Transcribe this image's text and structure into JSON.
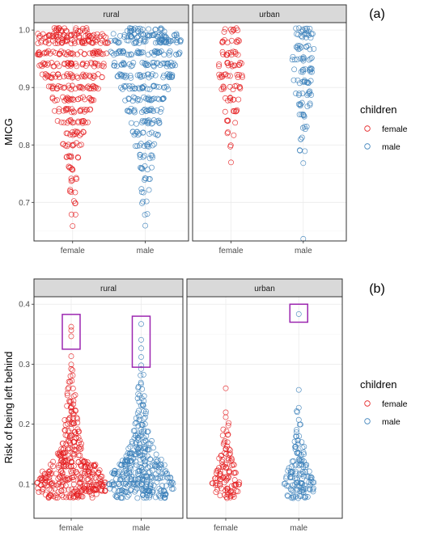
{
  "chart_data": [
    {
      "type": "scatter",
      "subtype": "beeswarm",
      "panel_label": "(a)",
      "ylabel": "MICG",
      "ylim": [
        0.64,
        1.0
      ],
      "yticks": [
        0.7,
        0.8,
        0.9,
        1.0
      ],
      "ytick_labels": [
        "0.7",
        "0.8",
        "0.9",
        "1.0"
      ],
      "facets": [
        "rural",
        "urban"
      ],
      "categories": [
        "female",
        "male"
      ],
      "legend": {
        "title": "children",
        "position": "right",
        "entries": [
          "female",
          "male"
        ]
      },
      "grid": true,
      "series": [
        {
          "name": "female",
          "color": "#E41A1C",
          "facet": "rural",
          "profile": [
            [
              0.66,
              1
            ],
            [
              0.68,
              2
            ],
            [
              0.7,
              3
            ],
            [
              0.72,
              4
            ],
            [
              0.74,
              5
            ],
            [
              0.76,
              6
            ],
            [
              0.78,
              8
            ],
            [
              0.8,
              11
            ],
            [
              0.82,
              14
            ],
            [
              0.84,
              18
            ],
            [
              0.86,
              22
            ],
            [
              0.88,
              26
            ],
            [
              0.9,
              32
            ],
            [
              0.92,
              38
            ],
            [
              0.94,
              42
            ],
            [
              0.96,
              46
            ],
            [
              0.98,
              48
            ],
            [
              0.99,
              46
            ],
            [
              1.0,
              22
            ]
          ]
        },
        {
          "name": "male",
          "color": "#377EB8",
          "facet": "rural",
          "profile": [
            [
              0.66,
              1
            ],
            [
              0.68,
              2
            ],
            [
              0.7,
              3
            ],
            [
              0.72,
              4
            ],
            [
              0.74,
              5
            ],
            [
              0.76,
              7
            ],
            [
              0.78,
              9
            ],
            [
              0.8,
              12
            ],
            [
              0.82,
              15
            ],
            [
              0.84,
              18
            ],
            [
              0.86,
              22
            ],
            [
              0.88,
              26
            ],
            [
              0.9,
              30
            ],
            [
              0.92,
              36
            ],
            [
              0.94,
              42
            ],
            [
              0.96,
              46
            ],
            [
              0.98,
              46
            ],
            [
              0.99,
              40
            ],
            [
              1.0,
              24
            ]
          ]
        },
        {
          "name": "female",
          "color": "#E41A1C",
          "facet": "urban",
          "profile": [
            [
              0.77,
              1
            ],
            [
              0.8,
              2
            ],
            [
              0.82,
              3
            ],
            [
              0.84,
              4
            ],
            [
              0.86,
              6
            ],
            [
              0.88,
              8
            ],
            [
              0.9,
              11
            ],
            [
              0.92,
              14
            ],
            [
              0.94,
              14
            ],
            [
              0.96,
              12
            ],
            [
              0.98,
              10
            ],
            [
              1.0,
              8
            ]
          ]
        },
        {
          "name": "male",
          "color": "#377EB8",
          "facet": "urban",
          "profile": [
            [
              0.64,
              1
            ],
            [
              0.77,
              1
            ],
            [
              0.79,
              3
            ],
            [
              0.81,
              3
            ],
            [
              0.83,
              4
            ],
            [
              0.85,
              6
            ],
            [
              0.87,
              8
            ],
            [
              0.89,
              10
            ],
            [
              0.91,
              12
            ],
            [
              0.93,
              13
            ],
            [
              0.95,
              13
            ],
            [
              0.97,
              12
            ],
            [
              0.99,
              12
            ],
            [
              1.0,
              10
            ]
          ]
        }
      ]
    },
    {
      "type": "scatter",
      "subtype": "beeswarm",
      "panel_label": "(b)",
      "ylabel": "Risk of being left behind",
      "ylim": [
        0.05,
        0.4
      ],
      "yticks": [
        0.1,
        0.2,
        0.3,
        0.4
      ],
      "ytick_labels": [
        "0.1",
        "0.2",
        "0.3",
        "0.4"
      ],
      "facets": [
        "rural",
        "urban"
      ],
      "categories": [
        "female",
        "male"
      ],
      "legend": {
        "title": "children",
        "position": "right",
        "entries": [
          "female",
          "male"
        ]
      },
      "grid": true,
      "highlight_boxes": [
        {
          "facet": "rural",
          "category": "female",
          "y_range": [
            0.325,
            0.383
          ],
          "color": "#9C27B0"
        },
        {
          "facet": "rural",
          "category": "male",
          "y_range": [
            0.295,
            0.38
          ],
          "color": "#9C27B0"
        },
        {
          "facet": "urban",
          "category": "male",
          "y_range": [
            0.37,
            0.4
          ],
          "color": "#9C27B0"
        }
      ],
      "series": [
        {
          "name": "female",
          "color": "#E41A1C",
          "facet": "rural",
          "profile": [
            [
              0.08,
              34
            ],
            [
              0.09,
              46
            ],
            [
              0.1,
              44
            ],
            [
              0.11,
              40
            ],
            [
              0.12,
              36
            ],
            [
              0.13,
              30
            ],
            [
              0.14,
              22
            ],
            [
              0.15,
              18
            ],
            [
              0.16,
              14
            ],
            [
              0.17,
              12
            ],
            [
              0.18,
              10
            ],
            [
              0.19,
              9
            ],
            [
              0.2,
              8
            ],
            [
              0.21,
              7
            ],
            [
              0.22,
              6
            ],
            [
              0.23,
              5
            ],
            [
              0.24,
              4
            ],
            [
              0.25,
              4
            ],
            [
              0.26,
              3
            ],
            [
              0.27,
              3
            ],
            [
              0.28,
              2
            ],
            [
              0.29,
              2
            ],
            [
              0.3,
              1
            ],
            [
              0.31,
              1
            ],
            [
              0.345,
              1
            ],
            [
              0.355,
              1
            ],
            [
              0.365,
              1
            ]
          ]
        },
        {
          "name": "male",
          "color": "#377EB8",
          "facet": "rural",
          "profile": [
            [
              0.08,
              32
            ],
            [
              0.09,
              40
            ],
            [
              0.1,
              42
            ],
            [
              0.11,
              38
            ],
            [
              0.12,
              36
            ],
            [
              0.13,
              30
            ],
            [
              0.14,
              26
            ],
            [
              0.15,
              20
            ],
            [
              0.16,
              16
            ],
            [
              0.17,
              12
            ],
            [
              0.18,
              10
            ],
            [
              0.19,
              8
            ],
            [
              0.2,
              7
            ],
            [
              0.21,
              6
            ],
            [
              0.22,
              5
            ],
            [
              0.23,
              4
            ],
            [
              0.24,
              4
            ],
            [
              0.25,
              3
            ],
            [
              0.26,
              3
            ],
            [
              0.27,
              2
            ],
            [
              0.28,
              2
            ],
            [
              0.29,
              1
            ],
            [
              0.3,
              1
            ],
            [
              0.31,
              1
            ],
            [
              0.325,
              1
            ],
            [
              0.34,
              1
            ],
            [
              0.365,
              1
            ]
          ]
        },
        {
          "name": "female",
          "color": "#E41A1C",
          "facet": "urban",
          "profile": [
            [
              0.08,
              10
            ],
            [
              0.09,
              14
            ],
            [
              0.1,
              16
            ],
            [
              0.11,
              14
            ],
            [
              0.12,
              12
            ],
            [
              0.13,
              10
            ],
            [
              0.14,
              8
            ],
            [
              0.15,
              6
            ],
            [
              0.16,
              5
            ],
            [
              0.17,
              4
            ],
            [
              0.18,
              3
            ],
            [
              0.19,
              2
            ],
            [
              0.2,
              2
            ],
            [
              0.21,
              1
            ],
            [
              0.22,
              1
            ],
            [
              0.26,
              1
            ]
          ]
        },
        {
          "name": "male",
          "color": "#377EB8",
          "facet": "urban",
          "profile": [
            [
              0.08,
              14
            ],
            [
              0.09,
              18
            ],
            [
              0.1,
              20
            ],
            [
              0.11,
              16
            ],
            [
              0.12,
              14
            ],
            [
              0.13,
              11
            ],
            [
              0.14,
              9
            ],
            [
              0.15,
              7
            ],
            [
              0.16,
              6
            ],
            [
              0.17,
              5
            ],
            [
              0.18,
              3
            ],
            [
              0.19,
              2
            ],
            [
              0.2,
              2
            ],
            [
              0.21,
              1
            ],
            [
              0.22,
              2
            ],
            [
              0.23,
              1
            ],
            [
              0.26,
              1
            ],
            [
              0.385,
              1
            ]
          ]
        }
      ]
    }
  ]
}
